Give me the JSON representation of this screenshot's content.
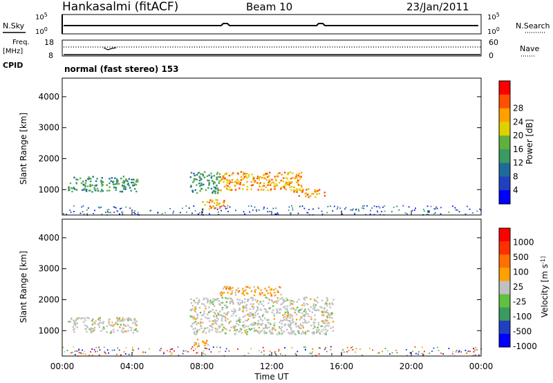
{
  "header": {
    "station": "Hankasalmi (fitACF)",
    "beam": "Beam 10",
    "date": "23/Jan/2011"
  },
  "noise_panel": {
    "left_label": "N.Sky",
    "right_label": "N.Search",
    "left_ticks": [
      "10^5",
      "10^0"
    ],
    "right_ticks": [
      "10^5",
      "10^0"
    ]
  },
  "freq_panel": {
    "left_label": "Freq.",
    "left_unit": "[MHz]",
    "left_ticks": [
      "18",
      "8"
    ],
    "right_label": "Nave",
    "right_ticks": [
      "60",
      "0"
    ]
  },
  "cpid": {
    "label": "CPID",
    "value": "normal (fast stereo) 153"
  },
  "chart_data": [
    {
      "type": "heatmap",
      "title": "",
      "xlabel": "Time UT",
      "ylabel": "Slant Range [km]",
      "x_ticks": [
        "00:00",
        "04:00",
        "08:00",
        "12:00",
        "16:00",
        "20:00",
        "00:00"
      ],
      "xlim": [
        0,
        24
      ],
      "y_ticks": [
        1000,
        2000,
        3000,
        4000
      ],
      "ylim": [
        180,
        4600
      ],
      "colorbar": {
        "label": "Power [dB]",
        "ticks": [
          "4",
          "8",
          "12",
          "16",
          "20",
          "24",
          "28"
        ],
        "colors": [
          "#0000ff",
          "#2040c0",
          "#206a9a",
          "#3a9a60",
          "#60b040",
          "#e0d000",
          "#ffa000",
          "#ff5000",
          "#ff0000"
        ]
      },
      "features": [
        {
          "t": [
            0.3,
            4.3
          ],
          "r": [
            950,
            1450
          ],
          "level": "medium"
        },
        {
          "t": [
            7.3,
            9.0
          ],
          "r": [
            900,
            1600
          ],
          "level": "medium"
        },
        {
          "t": [
            9.0,
            13.8
          ],
          "r": [
            1000,
            1600
          ],
          "level": "high"
        },
        {
          "t": [
            13.2,
            15.0
          ],
          "r": [
            780,
            1050
          ],
          "level": "high"
        },
        {
          "t": [
            8.0,
            9.5
          ],
          "r": [
            400,
            700
          ],
          "level": "high"
        }
      ]
    },
    {
      "type": "heatmap",
      "title": "",
      "xlabel": "Time UT",
      "ylabel": "Slant Range [km]",
      "x_ticks": [
        "00:00",
        "04:00",
        "08:00",
        "12:00",
        "16:00",
        "20:00",
        "00:00"
      ],
      "xlim": [
        0,
        24
      ],
      "y_ticks": [
        1000,
        2000,
        3000,
        4000
      ],
      "ylim": [
        180,
        4600
      ],
      "colorbar": {
        "label": "Velocity [m s^-1]",
        "ticks": [
          "1000",
          "500",
          "100",
          "25",
          "-25",
          "-100",
          "-500",
          "-1000"
        ],
        "colors": [
          "#0000ff",
          "#2040c0",
          "#3a9a60",
          "#60c040",
          "#c0c0c0",
          "#ffa000",
          "#ff7000",
          "#ff3000",
          "#ff0000"
        ]
      },
      "features": [
        {
          "t": [
            0.3,
            4.3
          ],
          "r": [
            950,
            1450
          ],
          "velocity": "low"
        },
        {
          "t": [
            7.3,
            15.5
          ],
          "r": [
            900,
            2100
          ],
          "velocity": "low"
        },
        {
          "t": [
            9.0,
            12.5
          ],
          "r": [
            2150,
            2450
          ],
          "velocity": "negative"
        },
        {
          "t": [
            7.5,
            8.5
          ],
          "r": [
            500,
            750
          ],
          "velocity": "negative"
        }
      ]
    }
  ]
}
